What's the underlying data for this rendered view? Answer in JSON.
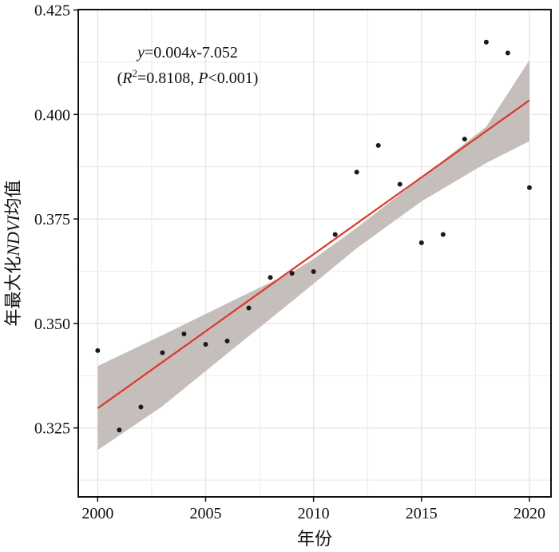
{
  "chart_data": {
    "type": "scatter",
    "xlabel": "年份",
    "ylabel_parts": [
      "年最大化",
      "NDVI",
      "均值"
    ],
    "xlim": [
      1999.1,
      2021.0
    ],
    "ylim": [
      0.3085,
      0.4251
    ],
    "x_ticks": [
      2000,
      2005,
      2010,
      2015,
      2020
    ],
    "y_ticks": [
      0.325,
      0.35,
      0.375,
      0.4,
      0.425
    ],
    "y_tick_labels": [
      "0.325",
      "0.350",
      "0.375",
      "0.400",
      "0.425"
    ],
    "x_tick_labels": [
      "2000",
      "2005",
      "2010",
      "2015",
      "2020"
    ],
    "grid": true,
    "points": {
      "x": [
        2000,
        2001,
        2002,
        2003,
        2004,
        2005,
        2006,
        2007,
        2008,
        2009,
        2010,
        2011,
        2012,
        2013,
        2014,
        2015,
        2016,
        2017,
        2018,
        2019,
        2020
      ],
      "y": [
        0.3435,
        0.3245,
        0.33,
        0.343,
        0.3475,
        0.345,
        0.3458,
        0.3537,
        0.361,
        0.362,
        0.3624,
        0.3713,
        0.3862,
        0.3926,
        0.3833,
        0.3693,
        0.3713,
        0.3941,
        0.4173,
        0.4147,
        0.3825
      ]
    },
    "fit_line": {
      "x": [
        2000,
        2020
      ],
      "y": [
        0.3297,
        0.4034
      ]
    },
    "confidence_band": {
      "x": [
        2000,
        2003,
        2006,
        2009,
        2010,
        2012,
        2015,
        2018,
        2020
      ],
      "lower": [
        0.3197,
        0.3302,
        0.3428,
        0.3553,
        0.3595,
        0.368,
        0.3792,
        0.3884,
        0.3936
      ],
      "upper": [
        0.3398,
        0.3472,
        0.3548,
        0.3623,
        0.3654,
        0.3729,
        0.3849,
        0.3971,
        0.413
      ]
    },
    "colors": {
      "points": "#1a1a1a",
      "fit_line": "#d93a2b",
      "band": "#c6bebb",
      "grid": "#e6e6e6",
      "axes": "#111111"
    },
    "annotation": {
      "equation": {
        "y": "y",
        "rest": "=0.004",
        "x": "x",
        "tail": "-7.052"
      },
      "stats": {
        "open": "(",
        "R": "R",
        "sup": "2",
        "r2": "=0.8108, ",
        "P": "P",
        "p": "<0.001)"
      }
    }
  }
}
